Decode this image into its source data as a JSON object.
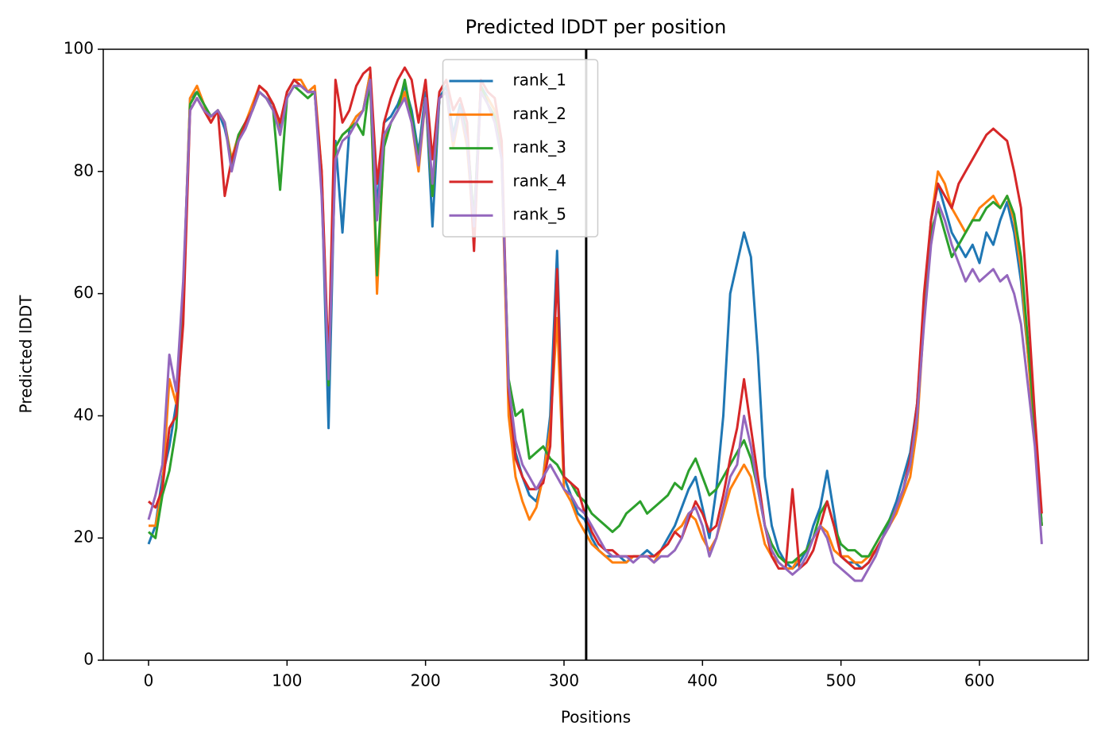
{
  "chart_data": {
    "type": "line",
    "title": "Predicted lDDT per position",
    "x_label": "Positions",
    "y_label": "Predicted lDDT",
    "x": [
      0,
      5,
      10,
      15,
      20,
      25,
      30,
      35,
      40,
      45,
      50,
      55,
      60,
      65,
      70,
      75,
      80,
      85,
      90,
      95,
      100,
      105,
      110,
      115,
      120,
      125,
      130,
      135,
      140,
      145,
      150,
      155,
      160,
      165,
      170,
      175,
      180,
      185,
      190,
      195,
      200,
      205,
      210,
      215,
      220,
      225,
      230,
      235,
      240,
      245,
      250,
      255,
      260,
      265,
      270,
      275,
      280,
      285,
      290,
      295,
      300,
      305,
      310,
      315,
      320,
      325,
      330,
      335,
      340,
      345,
      350,
      355,
      360,
      365,
      370,
      375,
      380,
      385,
      390,
      395,
      400,
      405,
      410,
      415,
      420,
      425,
      430,
      435,
      440,
      445,
      450,
      455,
      460,
      465,
      470,
      475,
      480,
      485,
      490,
      495,
      500,
      505,
      510,
      515,
      520,
      525,
      530,
      535,
      540,
      545,
      550,
      555,
      560,
      565,
      570,
      575,
      580,
      585,
      590,
      595,
      600,
      605,
      610,
      615,
      620,
      625,
      630,
      635,
      640,
      645
    ],
    "series": [
      {
        "name": "rank_1",
        "color": "#1f77b4",
        "values": [
          19,
          22,
          30,
          35,
          42,
          60,
          92,
          93,
          91,
          89,
          90,
          87,
          82,
          86,
          88,
          90,
          93,
          92,
          91,
          87,
          93,
          95,
          94,
          93,
          93,
          78,
          38,
          85,
          70,
          87,
          89,
          90,
          96,
          74,
          88,
          89,
          91,
          94,
          90,
          83,
          93,
          71,
          92,
          94,
          86,
          91,
          86,
          72,
          94,
          92,
          90,
          83,
          42,
          34,
          30,
          27,
          26,
          30,
          40,
          67,
          30,
          27,
          24,
          23,
          20,
          18,
          17,
          17,
          17,
          16,
          17,
          17,
          18,
          17,
          18,
          20,
          22,
          25,
          28,
          30,
          25,
          20,
          28,
          40,
          60,
          65,
          70,
          66,
          50,
          30,
          22,
          18,
          16,
          15,
          16,
          18,
          22,
          25,
          31,
          24,
          17,
          16,
          16,
          15,
          16,
          18,
          20,
          23,
          26,
          30,
          34,
          42,
          58,
          72,
          78,
          74,
          70,
          68,
          66,
          68,
          65,
          70,
          68,
          72,
          75,
          70,
          62,
          50,
          38,
          22
        ]
      },
      {
        "name": "rank_2",
        "color": "#ff7f0e",
        "values": [
          22,
          22,
          28,
          46,
          42,
          60,
          92,
          94,
          91,
          88,
          90,
          88,
          82,
          86,
          88,
          91,
          94,
          93,
          91,
          86,
          93,
          95,
          95,
          93,
          94,
          80,
          46,
          84,
          86,
          87,
          89,
          90,
          96,
          60,
          85,
          88,
          90,
          93,
          88,
          80,
          92,
          76,
          92,
          93,
          84,
          90,
          84,
          70,
          93,
          92,
          90,
          82,
          40,
          30,
          26,
          23,
          25,
          30,
          38,
          56,
          28,
          26,
          23,
          21,
          19,
          18,
          17,
          16,
          16,
          16,
          17,
          17,
          17,
          16,
          18,
          19,
          21,
          22,
          24,
          23,
          20,
          18,
          20,
          24,
          28,
          30,
          32,
          30,
          24,
          19,
          17,
          16,
          15,
          15,
          17,
          18,
          20,
          22,
          21,
          18,
          17,
          17,
          16,
          16,
          17,
          18,
          20,
          22,
          24,
          27,
          30,
          38,
          56,
          72,
          80,
          78,
          74,
          72,
          70,
          72,
          74,
          75,
          76,
          74,
          76,
          72,
          64,
          50,
          36,
          22
        ]
      },
      {
        "name": "rank_3",
        "color": "#2ca02c",
        "values": [
          21,
          20,
          27,
          31,
          38,
          58,
          91,
          93,
          91,
          89,
          90,
          88,
          81,
          86,
          88,
          90,
          93,
          92,
          90,
          77,
          92,
          94,
          93,
          92,
          93,
          78,
          45,
          84,
          86,
          87,
          88,
          86,
          95,
          63,
          84,
          88,
          90,
          95,
          89,
          82,
          92,
          76,
          92,
          93,
          85,
          90,
          86,
          72,
          94,
          91,
          89,
          82,
          46,
          40,
          41,
          33,
          34,
          35,
          33,
          32,
          30,
          29,
          27,
          26,
          24,
          23,
          22,
          21,
          22,
          24,
          25,
          26,
          24,
          25,
          26,
          27,
          29,
          28,
          31,
          33,
          30,
          27,
          28,
          30,
          32,
          34,
          36,
          33,
          28,
          22,
          19,
          17,
          16,
          16,
          17,
          18,
          20,
          24,
          26,
          22,
          19,
          18,
          18,
          17,
          17,
          19,
          21,
          23,
          25,
          28,
          32,
          40,
          56,
          70,
          74,
          70,
          66,
          68,
          70,
          72,
          72,
          74,
          75,
          74,
          76,
          73,
          66,
          52,
          38,
          22
        ]
      },
      {
        "name": "rank_4",
        "color": "#d62728",
        "values": [
          26,
          25,
          28,
          38,
          40,
          55,
          90,
          92,
          90,
          88,
          90,
          76,
          82,
          85,
          88,
          90,
          94,
          93,
          91,
          88,
          93,
          95,
          94,
          93,
          93,
          80,
          48,
          95,
          88,
          90,
          94,
          96,
          97,
          78,
          88,
          92,
          95,
          97,
          95,
          88,
          95,
          82,
          93,
          95,
          90,
          92,
          88,
          67,
          95,
          93,
          92,
          85,
          44,
          33,
          30,
          28,
          28,
          29,
          35,
          64,
          30,
          29,
          28,
          24,
          21,
          19,
          18,
          18,
          17,
          17,
          17,
          17,
          17,
          17,
          18,
          19,
          21,
          20,
          23,
          26,
          24,
          21,
          22,
          27,
          33,
          38,
          46,
          38,
          30,
          22,
          17,
          15,
          15,
          28,
          15,
          16,
          18,
          22,
          26,
          22,
          17,
          16,
          15,
          15,
          16,
          18,
          20,
          22,
          25,
          28,
          33,
          42,
          60,
          72,
          78,
          76,
          74,
          78,
          80,
          82,
          84,
          86,
          87,
          86,
          85,
          80,
          74,
          58,
          40,
          24
        ]
      },
      {
        "name": "rank_5",
        "color": "#9467bd",
        "values": [
          23,
          27,
          32,
          50,
          44,
          62,
          90,
          92,
          90,
          89,
          90,
          88,
          80,
          85,
          87,
          90,
          93,
          92,
          90,
          86,
          92,
          94,
          94,
          93,
          93,
          76,
          46,
          82,
          85,
          86,
          88,
          90,
          95,
          72,
          86,
          88,
          90,
          92,
          88,
          81,
          92,
          78,
          92,
          93,
          85,
          90,
          85,
          71,
          93,
          91,
          88,
          82,
          45,
          36,
          32,
          30,
          28,
          30,
          32,
          30,
          28,
          27,
          25,
          24,
          22,
          20,
          18,
          17,
          17,
          17,
          16,
          17,
          17,
          16,
          17,
          17,
          18,
          20,
          24,
          25,
          22,
          17,
          20,
          25,
          30,
          32,
          40,
          35,
          28,
          22,
          18,
          16,
          15,
          14,
          15,
          17,
          20,
          22,
          20,
          16,
          15,
          14,
          13,
          13,
          15,
          17,
          20,
          22,
          25,
          28,
          32,
          40,
          55,
          68,
          75,
          72,
          68,
          65,
          62,
          64,
          62,
          63,
          64,
          62,
          63,
          60,
          55,
          45,
          35,
          19
        ]
      }
    ],
    "vline": 316,
    "vline_color": "#000000",
    "xlim": [
      -32.7,
      678.6
    ],
    "ylim": [
      0,
      100
    ],
    "xticks": [
      0,
      100,
      200,
      300,
      400,
      500,
      600
    ],
    "yticks": [
      0,
      20,
      40,
      60,
      80,
      100
    ],
    "legend": "upper center",
    "grid": false
  }
}
